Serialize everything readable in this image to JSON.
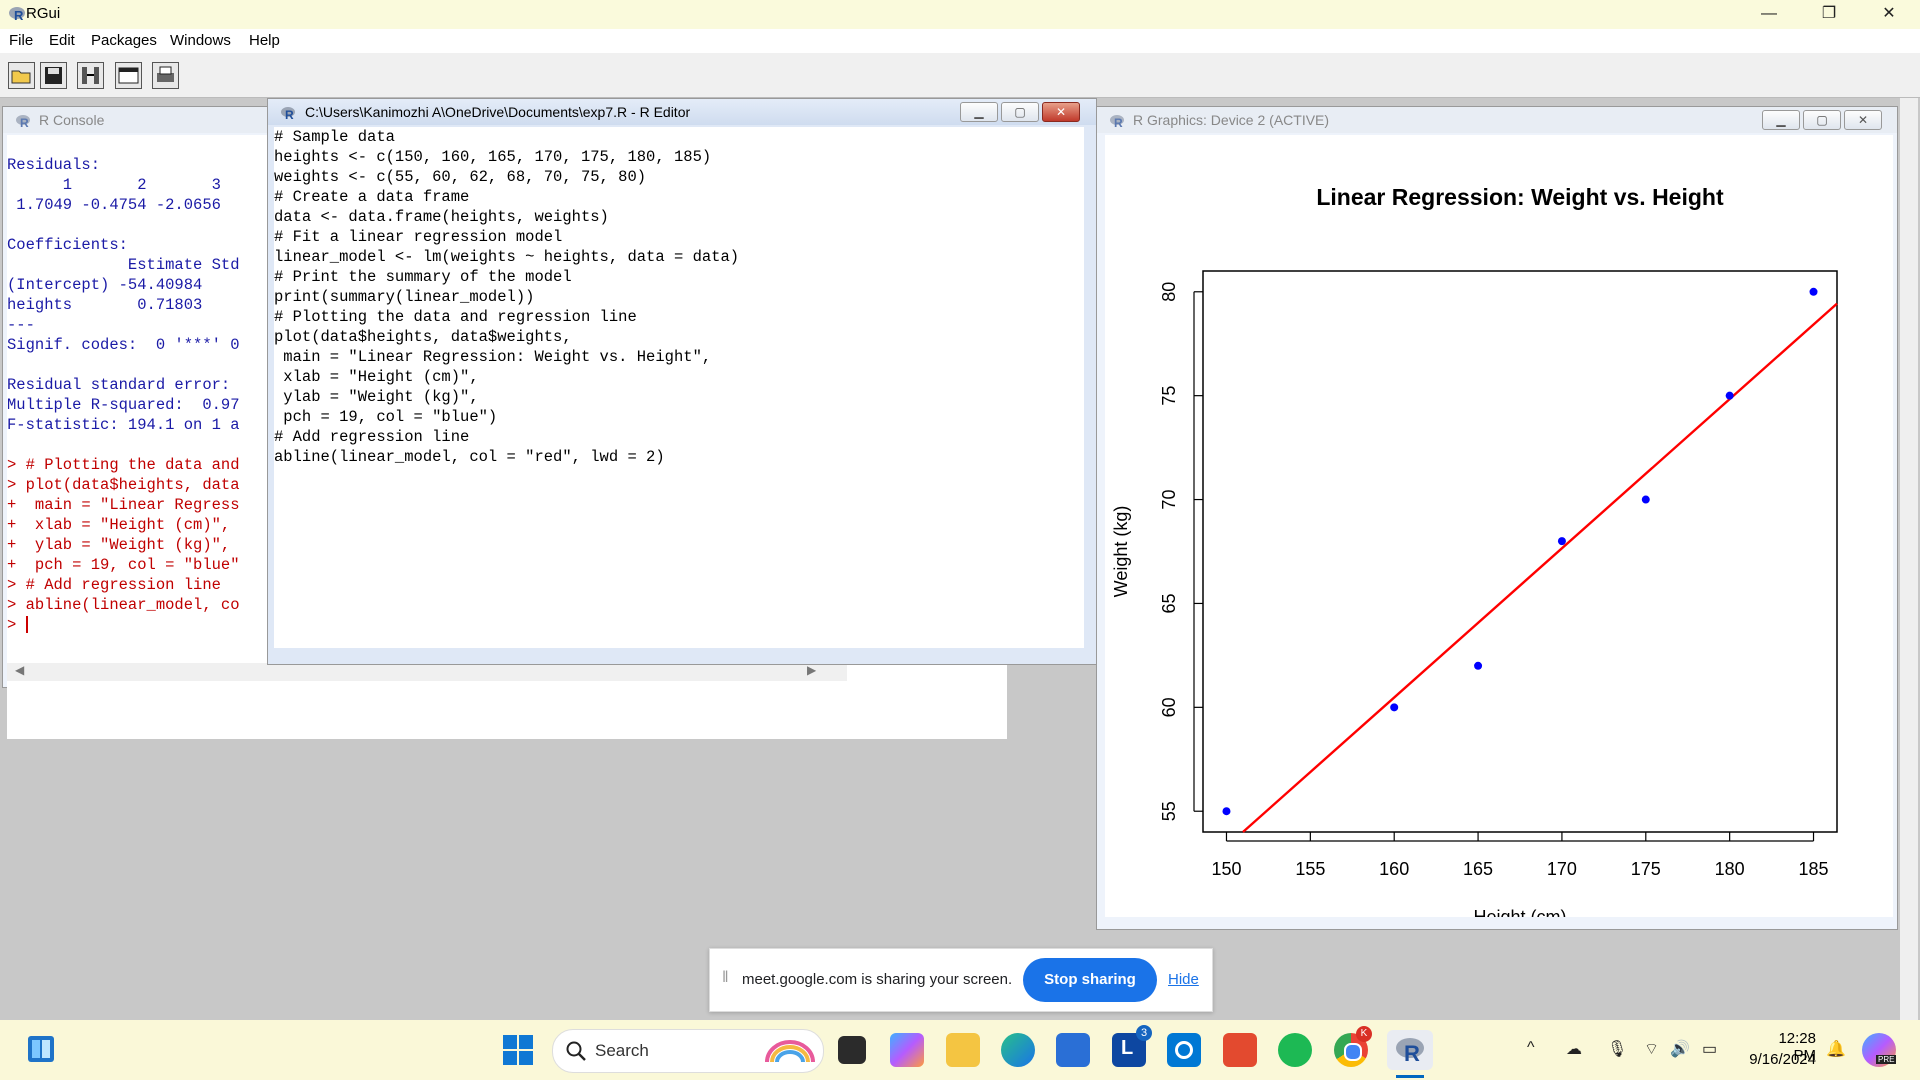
{
  "app": {
    "title": "RGui",
    "minimize_glyph": "—",
    "restore_glyph": "❐",
    "close_glyph": "✕"
  },
  "menu": [
    "File",
    "Edit",
    "Packages",
    "Windows",
    "Help"
  ],
  "toolbar_icons": [
    "open-script-icon",
    "save-icon",
    "load-workspace-icon",
    "console-icon",
    "print-icon"
  ],
  "console": {
    "title": "R Console",
    "lines": [
      {
        "t": "",
        "c": "b"
      },
      {
        "t": "Residuals:",
        "c": "b"
      },
      {
        "t": "      1       2       3 ",
        "c": "b"
      },
      {
        "t": " 1.7049 -0.4754 -2.0656 ",
        "c": "b"
      },
      {
        "t": "",
        "c": "b"
      },
      {
        "t": "Coefficients:",
        "c": "b"
      },
      {
        "t": "             Estimate Std",
        "c": "b"
      },
      {
        "t": "(Intercept) -54.40984   ",
        "c": "b"
      },
      {
        "t": "heights       0.71803   ",
        "c": "b"
      },
      {
        "t": "---",
        "c": "b"
      },
      {
        "t": "Signif. codes:  0 '***' 0",
        "c": "b"
      },
      {
        "t": "",
        "c": "b"
      },
      {
        "t": "Residual standard error:",
        "c": "b"
      },
      {
        "t": "Multiple R-squared:  0.97",
        "c": "b"
      },
      {
        "t": "F-statistic: 194.1 on 1 a",
        "c": "b"
      },
      {
        "t": "",
        "c": "b"
      },
      {
        "t": "> # Plotting the data and",
        "c": "r"
      },
      {
        "t": "> plot(data$heights, data",
        "c": "r"
      },
      {
        "t": "+  main = \"Linear Regress",
        "c": "r"
      },
      {
        "t": "+  xlab = \"Height (cm)\",",
        "c": "r"
      },
      {
        "t": "+  ylab = \"Weight (kg)\",",
        "c": "r"
      },
      {
        "t": "+  pch = 19, col = \"blue\"",
        "c": "r"
      },
      {
        "t": "> # Add regression line",
        "c": "r"
      },
      {
        "t": "> abline(linear_model, co",
        "c": "r"
      },
      {
        "t": "> ",
        "c": "r"
      }
    ]
  },
  "editor": {
    "title": "C:\\Users\\Kanimozhi A\\OneDrive\\Documents\\exp7.R - R Editor",
    "lines": [
      "# Sample data",
      "heights <- c(150, 160, 165, 170, 175, 180, 185)",
      "weights <- c(55, 60, 62, 68, 70, 75, 80)",
      "# Create a data frame",
      "data <- data.frame(heights, weights)",
      "# Fit a linear regression model",
      "linear_model <- lm(weights ~ heights, data = data)",
      "# Print the summary of the model",
      "print(summary(linear_model))",
      "# Plotting the data and regression line",
      "plot(data$heights, data$weights,",
      " main = \"Linear Regression: Weight vs. Height\",",
      " xlab = \"Height (cm)\",",
      " ylab = \"Weight (kg)\",",
      " pch = 19, col = \"blue\")",
      "# Add regression line",
      "abline(linear_model, col = \"red\", lwd = 2)"
    ]
  },
  "graphics": {
    "title": "R Graphics: Device 2 (ACTIVE)"
  },
  "chart_data": {
    "type": "scatter",
    "title": "Linear Regression: Weight vs. Height",
    "xlabel": "Height (cm)",
    "ylabel": "Weight (kg)",
    "x": [
      150,
      160,
      165,
      170,
      175,
      180,
      185
    ],
    "y": [
      55,
      60,
      62,
      68,
      70,
      75,
      80
    ],
    "xticks": [
      150,
      155,
      160,
      165,
      170,
      175,
      180,
      185
    ],
    "yticks": [
      55,
      60,
      65,
      70,
      75,
      80
    ],
    "xlim": [
      148.6,
      186.4
    ],
    "ylim": [
      54.0,
      81.0
    ],
    "point_color": "#0000ff",
    "regression_line": {
      "intercept": -54.40984,
      "slope": 0.71803,
      "color": "#ff0000"
    },
    "grid": false
  },
  "meet": {
    "text": "meet.google.com is sharing your screen.",
    "stop_label": "Stop sharing",
    "hide_label": "Hide"
  },
  "taskbar": {
    "search_placeholder": "Search",
    "time": "12:28 PM",
    "date": "9/16/2024",
    "badge_l": "3",
    "badge_chrome": "K",
    "badge_copilot": "PRE"
  }
}
